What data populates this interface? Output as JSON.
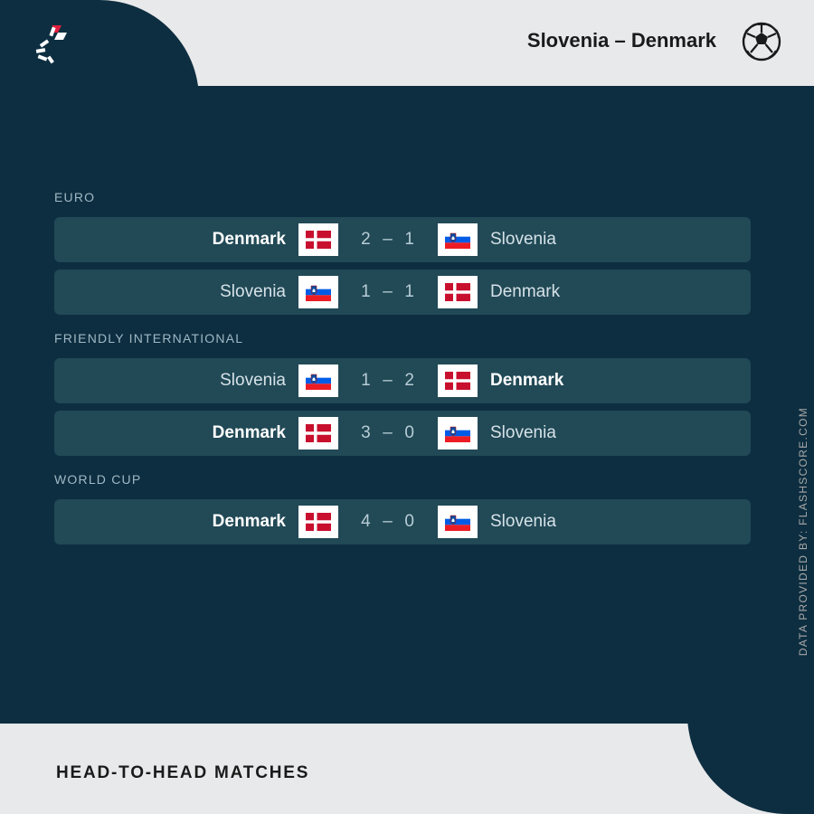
{
  "header": {
    "title": "Slovenia – Denmark"
  },
  "footer": {
    "title": "HEAD-TO-HEAD MATCHES"
  },
  "watermark": "DATA PROVIDED BY: FLASHSCORE.COM",
  "flags": {
    "denmark": {
      "bg": "#c8102e",
      "cross": "#ffffff"
    },
    "slovenia": {
      "s1": "#ffffff",
      "s2": "#005ce6",
      "s3": "#ed1c24",
      "coat": "#0b4ea2"
    }
  },
  "categories": [
    {
      "label": "EURO",
      "matches": [
        {
          "home": "Denmark",
          "away": "Slovenia",
          "hs": 2,
          "as": 1,
          "hf": "denmark",
          "af": "slovenia",
          "winner": "home"
        },
        {
          "home": "Slovenia",
          "away": "Denmark",
          "hs": 1,
          "as": 1,
          "hf": "slovenia",
          "af": "denmark",
          "winner": "draw"
        }
      ]
    },
    {
      "label": "FRIENDLY INTERNATIONAL",
      "matches": [
        {
          "home": "Slovenia",
          "away": "Denmark",
          "hs": 1,
          "as": 2,
          "hf": "slovenia",
          "af": "denmark",
          "winner": "away"
        },
        {
          "home": "Denmark",
          "away": "Slovenia",
          "hs": 3,
          "as": 0,
          "hf": "denmark",
          "af": "slovenia",
          "winner": "home"
        }
      ]
    },
    {
      "label": "WORLD CUP",
      "matches": [
        {
          "home": "Denmark",
          "away": "Slovenia",
          "hs": 4,
          "as": 0,
          "hf": "denmark",
          "af": "slovenia",
          "winner": "home"
        }
      ]
    }
  ],
  "colors": {
    "page_bg": "#e8e9eb",
    "main_bg": "#0d2e40",
    "row_bg": "#214956",
    "category_text": "#9fb8c5",
    "team_text": "#d6e2e8",
    "winner_text": "#ffffff",
    "score_text": "#b8cdd6"
  },
  "typography": {
    "header_fontsize": 22,
    "category_fontsize": 14,
    "team_fontsize": 19,
    "score_fontsize": 19,
    "footer_fontsize": 19,
    "watermark_fontsize": 12
  }
}
